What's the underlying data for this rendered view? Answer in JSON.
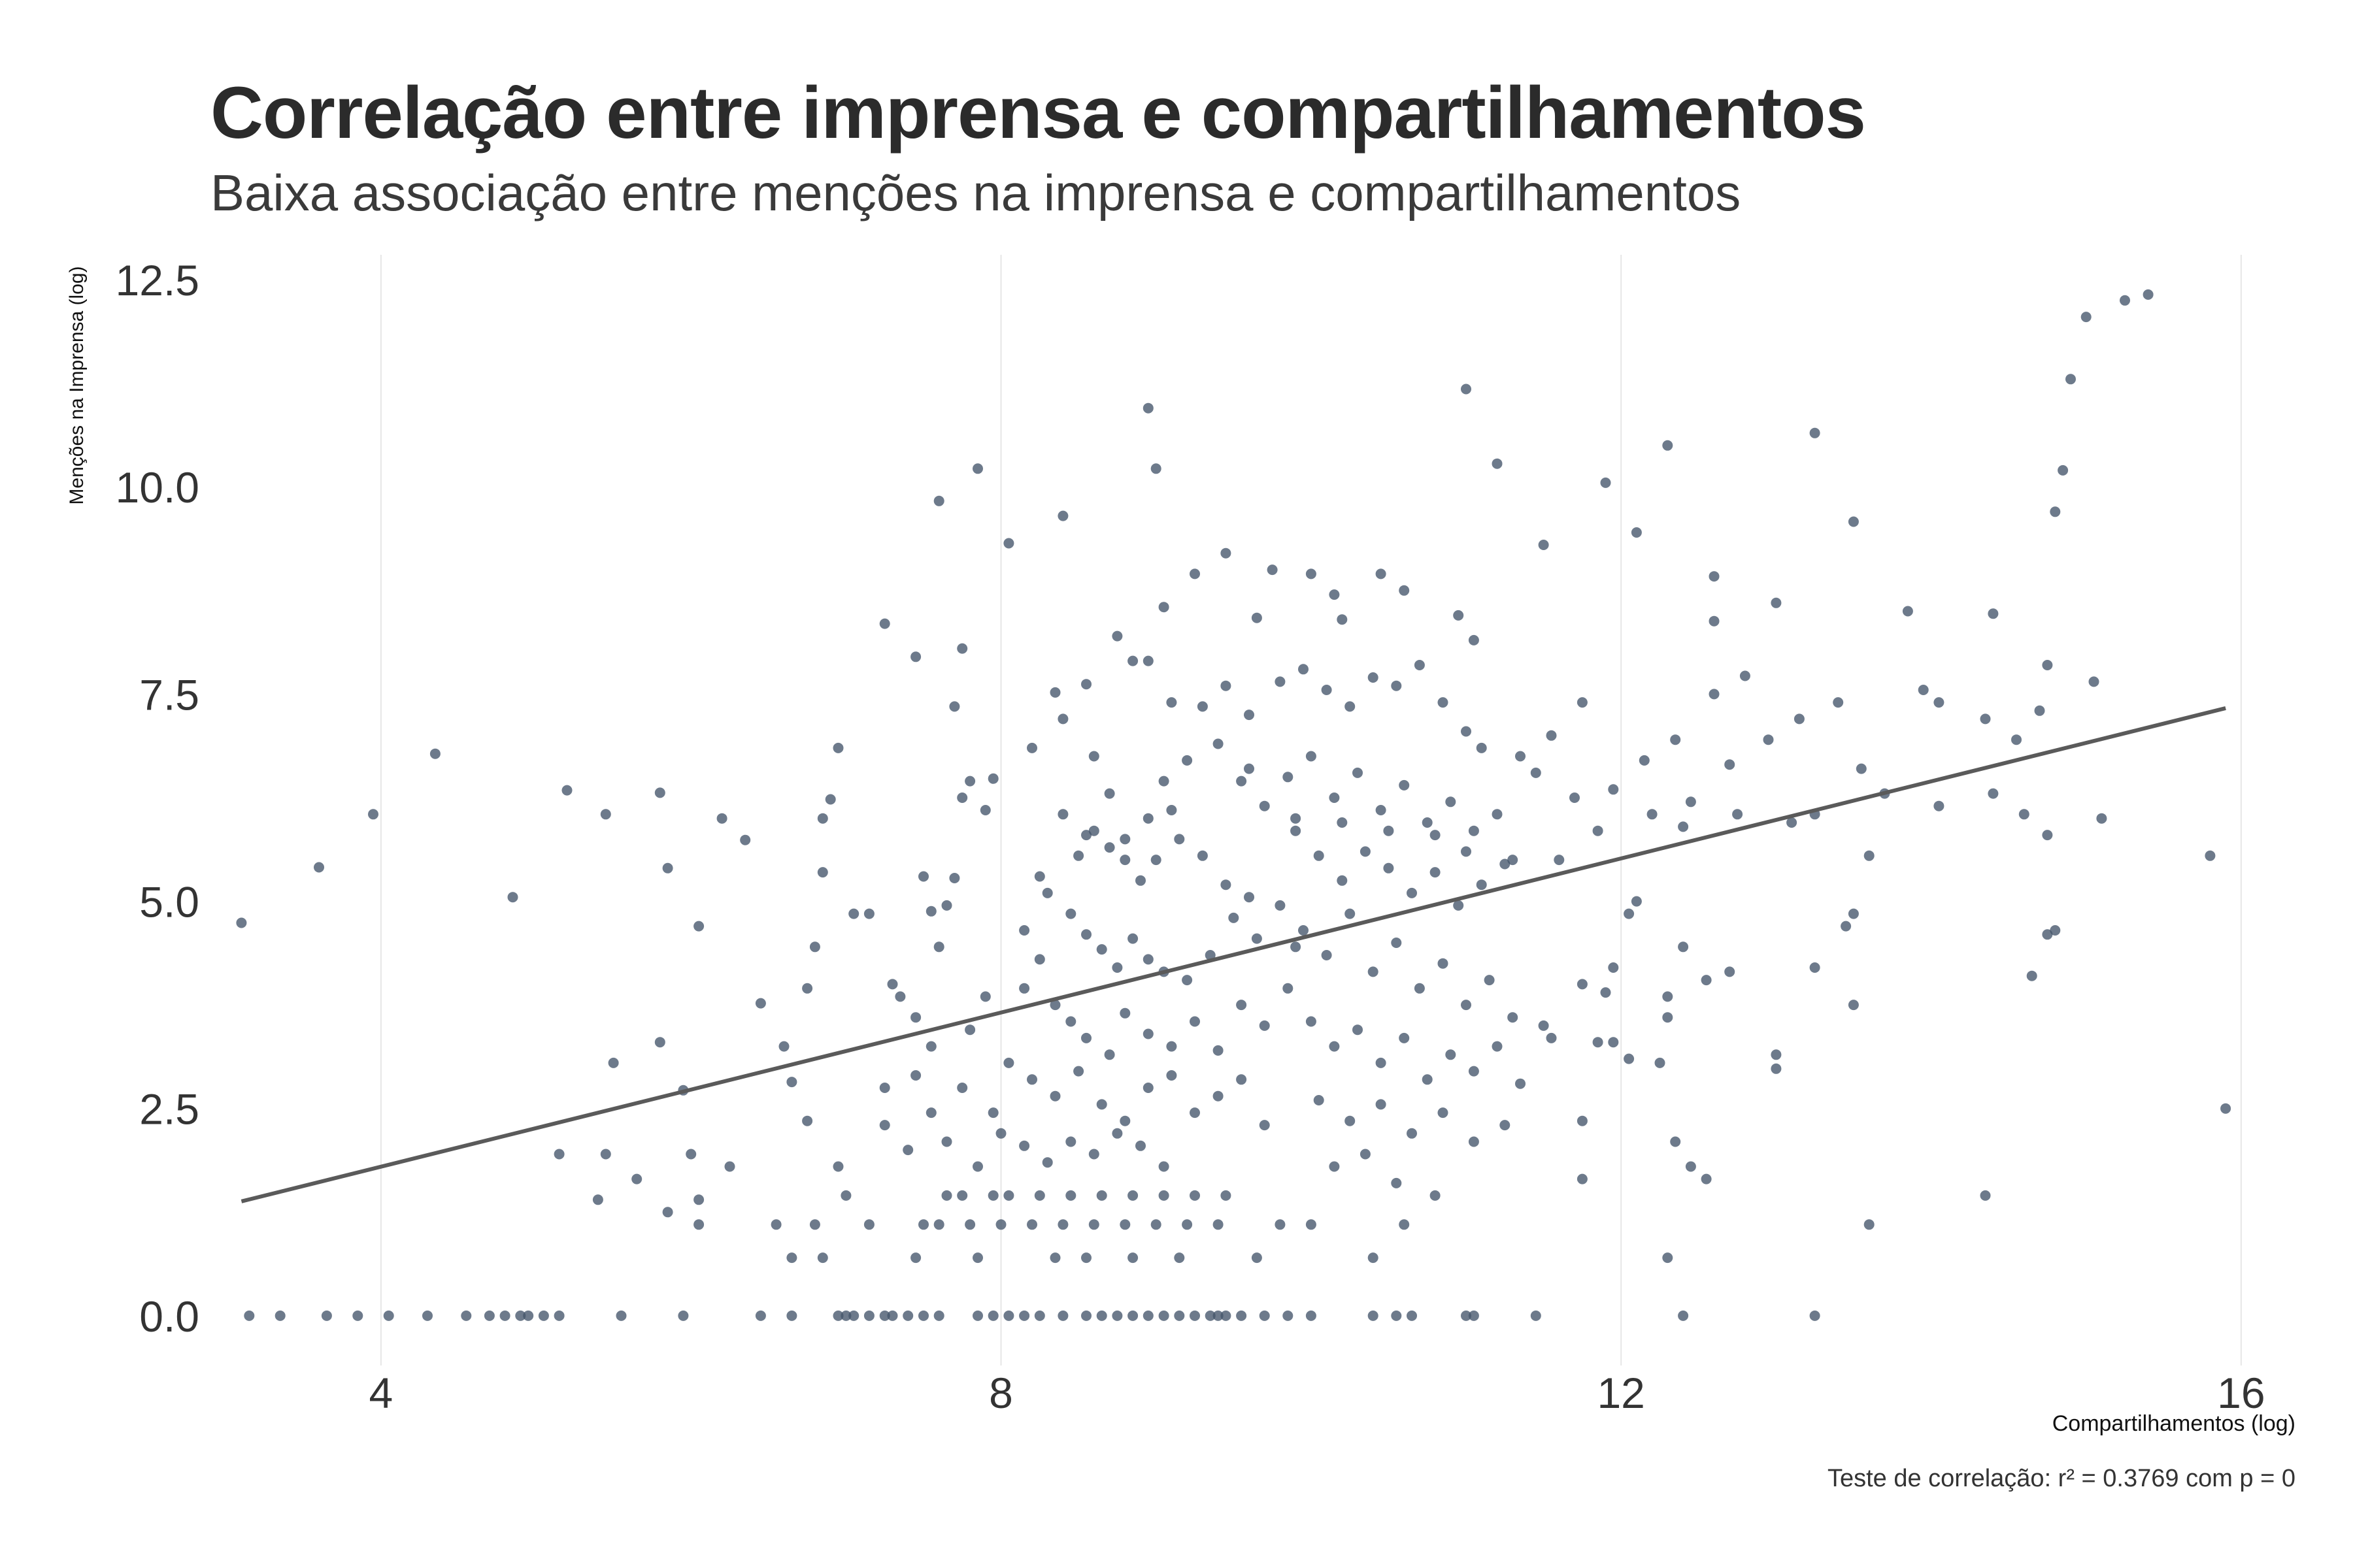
{
  "chart_data": {
    "type": "scatter",
    "title": "Correlação entre imprensa e compartilhamentos",
    "subtitle": "Baixa associação entre menções na imprensa e compartilhamentos",
    "xlabel": "Compartilhamentos (log)",
    "ylabel": "Menções na Imprensa  (log)",
    "caption": "Teste de correlação: r² =  0.3769 com p =  0",
    "xlim": [
      2.9,
      16.3
    ],
    "ylim": [
      -0.6,
      12.8
    ],
    "x_ticks": [
      4,
      8,
      12,
      16
    ],
    "x_tick_labels": [
      "4",
      "8",
      "12",
      "16"
    ],
    "y_ticks": [
      0,
      2.5,
      5,
      7.5,
      10,
      12.5
    ],
    "y_tick_labels": [
      "0.0",
      "2.5",
      "5.0",
      "7.5",
      "10.0",
      "12.5"
    ],
    "grid": "vertical major gridlines only",
    "colors": {
      "points": "#44546a",
      "trend_line": "#5a5a5a",
      "grid": "#e6e6e6"
    },
    "trend_line": {
      "x": [
        3.1,
        15.9
      ],
      "y": [
        1.38,
        7.33
      ]
    },
    "points": [
      [
        3.1,
        4.74
      ],
      [
        3.6,
        5.41
      ],
      [
        3.95,
        6.05
      ],
      [
        4.35,
        6.78
      ],
      [
        4.85,
        5.05
      ],
      [
        5.2,
        6.34
      ],
      [
        5.45,
        6.05
      ],
      [
        5.8,
        6.31
      ],
      [
        6.2,
        6.0
      ],
      [
        6.35,
        5.74
      ],
      [
        6.05,
        4.7
      ],
      [
        5.85,
        5.4
      ],
      [
        5.5,
        3.05
      ],
      [
        5.8,
        3.3
      ],
      [
        5.95,
        2.72
      ],
      [
        6.45,
        3.77
      ],
      [
        6.65,
        2.82
      ],
      [
        6.6,
        3.25
      ],
      [
        6.75,
        3.95
      ],
      [
        6.8,
        4.45
      ],
      [
        6.85,
        5.35
      ],
      [
        6.85,
        6.0
      ],
      [
        6.9,
        6.23
      ],
      [
        6.95,
        6.85
      ],
      [
        7.05,
        4.85
      ],
      [
        7.15,
        4.85
      ],
      [
        7.3,
        4.0
      ],
      [
        7.35,
        3.85
      ],
      [
        7.45,
        3.6
      ],
      [
        7.5,
        5.3
      ],
      [
        7.55,
        4.88
      ],
      [
        7.6,
        4.45
      ],
      [
        7.65,
        4.95
      ],
      [
        7.7,
        5.28
      ],
      [
        7.75,
        6.25
      ],
      [
        7.8,
        6.45
      ],
      [
        7.9,
        6.1
      ],
      [
        7.95,
        6.48
      ],
      [
        7.25,
        8.35
      ],
      [
        7.45,
        7.95
      ],
      [
        7.75,
        8.05
      ],
      [
        7.7,
        7.35
      ],
      [
        7.6,
        9.83
      ],
      [
        8.05,
        9.32
      ],
      [
        8.35,
        7.52
      ],
      [
        8.55,
        7.62
      ],
      [
        8.75,
        8.2
      ],
      [
        8.85,
        7.9
      ],
      [
        8.95,
        7.9
      ],
      [
        9.1,
        7.4
      ],
      [
        9.3,
        7.35
      ],
      [
        9.45,
        7.6
      ],
      [
        9.6,
        7.25
      ],
      [
        8.2,
        6.85
      ],
      [
        8.4,
        7.2
      ],
      [
        8.6,
        6.75
      ],
      [
        8.7,
        6.3
      ],
      [
        9.05,
        6.45
      ],
      [
        9.2,
        6.7
      ],
      [
        9.4,
        6.9
      ],
      [
        9.55,
        6.45
      ],
      [
        9.7,
        6.15
      ],
      [
        8.4,
        6.05
      ],
      [
        8.55,
        5.8
      ],
      [
        8.7,
        5.65
      ],
      [
        8.8,
        5.5
      ],
      [
        8.9,
        5.25
      ],
      [
        9.0,
        5.5
      ],
      [
        9.15,
        5.75
      ],
      [
        9.3,
        5.55
      ],
      [
        9.45,
        5.2
      ],
      [
        9.6,
        5.05
      ],
      [
        8.3,
        5.1
      ],
      [
        8.45,
        4.85
      ],
      [
        8.55,
        4.6
      ],
      [
        8.65,
        4.42
      ],
      [
        8.75,
        4.2
      ],
      [
        8.85,
        4.55
      ],
      [
        8.95,
        4.3
      ],
      [
        9.05,
        4.15
      ],
      [
        9.2,
        4.05
      ],
      [
        9.35,
        4.35
      ],
      [
        9.5,
        4.8
      ],
      [
        9.65,
        4.55
      ],
      [
        9.8,
        4.95
      ],
      [
        9.9,
        4.45
      ],
      [
        8.15,
        3.95
      ],
      [
        8.25,
        4.3
      ],
      [
        8.35,
        3.75
      ],
      [
        8.45,
        3.55
      ],
      [
        8.55,
        3.35
      ],
      [
        8.7,
        3.15
      ],
      [
        8.8,
        3.65
      ],
      [
        8.95,
        3.4
      ],
      [
        9.1,
        3.25
      ],
      [
        9.25,
        3.55
      ],
      [
        9.4,
        3.2
      ],
      [
        9.55,
        3.75
      ],
      [
        9.7,
        3.5
      ],
      [
        9.85,
        3.95
      ],
      [
        8.05,
        3.05
      ],
      [
        8.2,
        2.85
      ],
      [
        8.35,
        2.65
      ],
      [
        8.5,
        2.95
      ],
      [
        8.65,
        2.55
      ],
      [
        8.8,
        2.35
      ],
      [
        8.95,
        2.75
      ],
      [
        9.1,
        2.9
      ],
      [
        9.25,
        2.45
      ],
      [
        9.4,
        2.65
      ],
      [
        9.55,
        2.85
      ],
      [
        9.7,
        2.3
      ],
      [
        8.0,
        2.2
      ],
      [
        8.15,
        2.05
      ],
      [
        8.3,
        1.85
      ],
      [
        8.45,
        2.1
      ],
      [
        8.6,
        1.95
      ],
      [
        8.75,
        2.2
      ],
      [
        8.9,
        2.05
      ],
      [
        9.05,
        1.8
      ],
      [
        7.85,
        1.8
      ],
      [
        7.95,
        1.45
      ],
      [
        8.05,
        1.45
      ],
      [
        8.25,
        1.45
      ],
      [
        8.45,
        1.45
      ],
      [
        8.65,
        1.45
      ],
      [
        8.85,
        1.45
      ],
      [
        9.05,
        1.45
      ],
      [
        9.25,
        1.45
      ],
      [
        9.45,
        1.45
      ],
      [
        7.65,
        1.45
      ],
      [
        7.75,
        1.45
      ],
      [
        7.5,
        1.1
      ],
      [
        7.6,
        1.1
      ],
      [
        7.8,
        1.1
      ],
      [
        8.0,
        1.1
      ],
      [
        8.2,
        1.1
      ],
      [
        8.4,
        1.1
      ],
      [
        8.6,
        1.1
      ],
      [
        8.8,
        1.1
      ],
      [
        9.0,
        1.1
      ],
      [
        9.2,
        1.1
      ],
      [
        9.4,
        1.1
      ],
      [
        7.45,
        0.7
      ],
      [
        7.85,
        0.7
      ],
      [
        8.35,
        0.7
      ],
      [
        8.55,
        0.7
      ],
      [
        8.85,
        0.7
      ],
      [
        9.15,
        0.7
      ],
      [
        9.65,
        0.7
      ],
      [
        6.65,
        0.7
      ],
      [
        6.85,
        0.7
      ],
      [
        9.8,
        7.65
      ],
      [
        9.95,
        7.8
      ],
      [
        10.1,
        7.55
      ],
      [
        10.25,
        7.35
      ],
      [
        10.4,
        7.7
      ],
      [
        10.55,
        7.6
      ],
      [
        10.7,
        7.85
      ],
      [
        10.85,
        7.4
      ],
      [
        11.0,
        7.05
      ],
      [
        11.1,
        6.85
      ],
      [
        9.85,
        6.5
      ],
      [
        10.0,
        6.75
      ],
      [
        10.15,
        6.25
      ],
      [
        10.3,
        6.55
      ],
      [
        10.45,
        6.1
      ],
      [
        10.6,
        6.4
      ],
      [
        10.75,
        5.95
      ],
      [
        10.9,
        6.2
      ],
      [
        11.05,
        5.85
      ],
      [
        11.2,
        6.05
      ],
      [
        9.9,
        5.85
      ],
      [
        10.05,
        5.55
      ],
      [
        10.2,
        5.25
      ],
      [
        10.35,
        5.6
      ],
      [
        10.5,
        5.4
      ],
      [
        10.65,
        5.1
      ],
      [
        10.8,
        5.35
      ],
      [
        10.95,
        4.95
      ],
      [
        11.1,
        5.2
      ],
      [
        11.25,
        5.45
      ],
      [
        9.95,
        4.65
      ],
      [
        10.1,
        4.35
      ],
      [
        10.25,
        4.85
      ],
      [
        10.4,
        4.15
      ],
      [
        10.55,
        4.5
      ],
      [
        10.7,
        3.95
      ],
      [
        10.85,
        4.25
      ],
      [
        11.0,
        3.75
      ],
      [
        11.15,
        4.05
      ],
      [
        11.3,
        3.6
      ],
      [
        10.0,
        3.55
      ],
      [
        10.15,
        3.25
      ],
      [
        10.3,
        3.45
      ],
      [
        10.45,
        3.05
      ],
      [
        10.6,
        3.35
      ],
      [
        10.75,
        2.85
      ],
      [
        10.9,
        3.15
      ],
      [
        11.05,
        2.95
      ],
      [
        11.2,
        3.25
      ],
      [
        11.35,
        2.8
      ],
      [
        10.05,
        2.6
      ],
      [
        10.25,
        2.35
      ],
      [
        10.45,
        2.55
      ],
      [
        10.65,
        2.2
      ],
      [
        10.85,
        2.45
      ],
      [
        11.05,
        2.1
      ],
      [
        11.25,
        2.3
      ],
      [
        10.15,
        1.8
      ],
      [
        10.35,
        1.95
      ],
      [
        10.55,
        1.6
      ],
      [
        9.8,
        1.1
      ],
      [
        10.0,
        1.1
      ],
      [
        10.6,
        1.1
      ],
      [
        10.4,
        0.7
      ],
      [
        10.8,
        1.45
      ],
      [
        7.85,
        10.22
      ],
      [
        8.4,
        9.65
      ],
      [
        8.95,
        10.95
      ],
      [
        9.0,
        10.22
      ],
      [
        9.45,
        9.2
      ],
      [
        9.25,
        8.95
      ],
      [
        9.75,
        9.0
      ],
      [
        10.0,
        8.95
      ],
      [
        10.15,
        8.7
      ],
      [
        10.45,
        8.95
      ],
      [
        10.6,
        8.75
      ],
      [
        9.05,
        8.55
      ],
      [
        9.65,
        8.42
      ],
      [
        10.2,
        8.4
      ],
      [
        10.95,
        8.45
      ],
      [
        11.05,
        8.15
      ],
      [
        11.0,
        11.18
      ],
      [
        11.2,
        10.28
      ],
      [
        11.5,
        9.3
      ],
      [
        11.9,
        10.05
      ],
      [
        12.1,
        9.45
      ],
      [
        12.3,
        10.5
      ],
      [
        12.6,
        8.92
      ],
      [
        12.6,
        8.38
      ],
      [
        12.8,
        7.72
      ],
      [
        13.0,
        8.6
      ],
      [
        13.25,
        10.65
      ],
      [
        13.5,
        9.58
      ],
      [
        13.85,
        8.5
      ],
      [
        14.4,
        8.47
      ],
      [
        14.75,
        7.85
      ],
      [
        14.8,
        9.7
      ],
      [
        14.85,
        10.2
      ],
      [
        14.9,
        11.3
      ],
      [
        15.0,
        12.05
      ],
      [
        15.25,
        12.25
      ],
      [
        15.4,
        12.32
      ],
      [
        15.05,
        7.65
      ],
      [
        14.7,
        7.3
      ],
      [
        14.55,
        6.95
      ],
      [
        14.35,
        7.2
      ],
      [
        14.05,
        7.4
      ],
      [
        13.95,
        7.55
      ],
      [
        13.4,
        7.4
      ],
      [
        13.15,
        7.2
      ],
      [
        12.6,
        7.5
      ],
      [
        12.35,
        6.95
      ],
      [
        12.15,
        6.7
      ],
      [
        11.75,
        7.4
      ],
      [
        11.55,
        7.0
      ],
      [
        11.35,
        6.75
      ],
      [
        11.45,
        6.55
      ],
      [
        11.7,
        6.25
      ],
      [
        11.95,
        6.35
      ],
      [
        12.2,
        6.05
      ],
      [
        12.45,
        6.2
      ],
      [
        12.7,
        6.65
      ],
      [
        12.95,
        6.95
      ],
      [
        13.25,
        6.05
      ],
      [
        13.55,
        6.6
      ],
      [
        13.7,
        6.3
      ],
      [
        14.05,
        6.15
      ],
      [
        14.4,
        6.3
      ],
      [
        14.6,
        6.05
      ],
      [
        14.75,
        5.8
      ],
      [
        15.1,
        6.0
      ],
      [
        15.8,
        5.55
      ],
      [
        13.6,
        5.55
      ],
      [
        13.5,
        4.85
      ],
      [
        13.45,
        4.7
      ],
      [
        13.25,
        4.2
      ],
      [
        13.5,
        3.75
      ],
      [
        12.1,
        5.0
      ],
      [
        12.05,
        4.85
      ],
      [
        11.95,
        4.2
      ],
      [
        11.75,
        4.0
      ],
      [
        11.9,
        3.9
      ],
      [
        12.3,
        3.85
      ],
      [
        12.4,
        4.45
      ],
      [
        12.55,
        4.05
      ],
      [
        12.7,
        4.15
      ],
      [
        11.5,
        3.5
      ],
      [
        11.55,
        3.35
      ],
      [
        11.85,
        3.3
      ],
      [
        11.95,
        3.3
      ],
      [
        12.05,
        3.1
      ],
      [
        12.25,
        3.05
      ],
      [
        12.3,
        3.6
      ],
      [
        13.0,
        3.15
      ],
      [
        13.0,
        2.98
      ],
      [
        11.75,
        2.35
      ],
      [
        12.35,
        2.1
      ],
      [
        12.45,
        1.8
      ],
      [
        12.55,
        1.65
      ],
      [
        11.75,
        1.65
      ],
      [
        12.3,
        0.7
      ],
      [
        13.6,
        1.1
      ],
      [
        14.35,
        1.45
      ],
      [
        14.65,
        4.1
      ],
      [
        14.75,
        4.6
      ],
      [
        14.8,
        4.65
      ],
      [
        15.9,
        2.5
      ],
      [
        3.15,
        0.0
      ],
      [
        3.35,
        0.0
      ],
      [
        3.65,
        0.0
      ],
      [
        3.85,
        0.0
      ],
      [
        4.05,
        0.0
      ],
      [
        4.3,
        0.0
      ],
      [
        4.55,
        0.0
      ],
      [
        4.7,
        0.0
      ],
      [
        4.8,
        0.0
      ],
      [
        4.95,
        0.0
      ],
      [
        5.05,
        0.0
      ],
      [
        5.15,
        0.0
      ],
      [
        5.55,
        0.0
      ],
      [
        5.95,
        0.0
      ],
      [
        6.45,
        0.0
      ],
      [
        6.65,
        0.0
      ],
      [
        6.95,
        0.0
      ],
      [
        7.05,
        0.0
      ],
      [
        7.15,
        0.0
      ],
      [
        7.25,
        0.0
      ],
      [
        7.3,
        0.0
      ],
      [
        7.4,
        0.0
      ],
      [
        7.5,
        0.0
      ],
      [
        7.6,
        0.0
      ],
      [
        7.85,
        0.0
      ],
      [
        7.95,
        0.0
      ],
      [
        8.05,
        0.0
      ],
      [
        8.15,
        0.0
      ],
      [
        8.25,
        0.0
      ],
      [
        8.4,
        0.0
      ],
      [
        8.55,
        0.0
      ],
      [
        8.75,
        0.0
      ],
      [
        8.85,
        0.0
      ],
      [
        8.95,
        0.0
      ],
      [
        9.05,
        0.0
      ],
      [
        9.15,
        0.0
      ],
      [
        9.25,
        0.0
      ],
      [
        9.35,
        0.0
      ],
      [
        9.45,
        0.0
      ],
      [
        9.55,
        0.0
      ],
      [
        9.7,
        0.0
      ],
      [
        9.85,
        0.0
      ],
      [
        10.4,
        0.0
      ],
      [
        10.55,
        0.0
      ],
      [
        10.65,
        0.0
      ],
      [
        11.0,
        0.0
      ],
      [
        11.05,
        0.0
      ],
      [
        11.45,
        0.0
      ],
      [
        12.4,
        0.0
      ],
      [
        13.25,
        0.0
      ],
      [
        4.9,
        0.0
      ],
      [
        7.0,
        0.0
      ],
      [
        8.65,
        0.0
      ],
      [
        9.4,
        0.0
      ],
      [
        10.0,
        0.0
      ],
      [
        5.15,
        1.95
      ],
      [
        5.45,
        1.95
      ],
      [
        5.65,
        1.65
      ],
      [
        5.4,
        1.4
      ],
      [
        5.85,
        1.25
      ],
      [
        6.0,
        1.95
      ],
      [
        6.05,
        1.4
      ],
      [
        6.05,
        1.1
      ],
      [
        6.25,
        1.8
      ],
      [
        6.55,
        1.1
      ],
      [
        6.75,
        2.35
      ],
      [
        6.8,
        1.1
      ],
      [
        6.95,
        1.8
      ],
      [
        7.0,
        1.45
      ],
      [
        7.15,
        1.1
      ],
      [
        7.25,
        2.3
      ],
      [
        7.4,
        2.0
      ],
      [
        7.55,
        2.45
      ],
      [
        7.25,
        2.75
      ],
      [
        7.45,
        2.9
      ],
      [
        7.55,
        3.25
      ],
      [
        7.65,
        2.1
      ],
      [
        7.75,
        2.75
      ],
      [
        7.8,
        3.45
      ],
      [
        7.95,
        2.45
      ],
      [
        7.9,
        3.85
      ],
      [
        8.15,
        4.65
      ],
      [
        8.25,
        5.3
      ],
      [
        8.5,
        5.55
      ],
      [
        8.6,
        5.85
      ],
      [
        8.8,
        5.75
      ],
      [
        8.95,
        6.0
      ],
      [
        9.1,
        6.1
      ],
      [
        9.6,
        6.6
      ],
      [
        9.9,
        6.0
      ],
      [
        10.2,
        5.95
      ],
      [
        10.5,
        5.85
      ],
      [
        10.8,
        5.8
      ],
      [
        11.0,
        5.6
      ],
      [
        11.3,
        5.5
      ],
      [
        11.6,
        5.5
      ],
      [
        11.85,
        5.85
      ],
      [
        12.4,
        5.9
      ],
      [
        12.75,
        6.05
      ],
      [
        13.1,
        5.95
      ]
    ]
  }
}
